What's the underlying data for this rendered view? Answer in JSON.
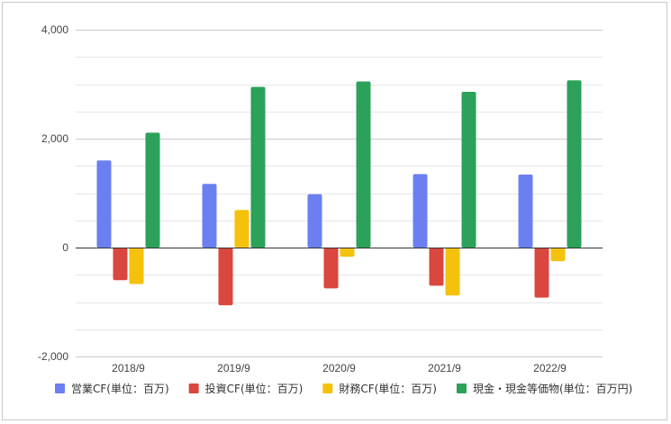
{
  "chart_data": {
    "type": "bar",
    "categories": [
      "2018/9",
      "2019/9",
      "2020/9",
      "2021/9",
      "2022/9"
    ],
    "series": [
      {
        "name": "営業CF(単位：百万)",
        "color": "#6b7ff0",
        "values": [
          1600,
          1170,
          980,
          1350,
          1340
        ]
      },
      {
        "name": "投資CF(単位：百万)",
        "color": "#d9473f",
        "values": [
          -600,
          -1060,
          -750,
          -700,
          -920
        ]
      },
      {
        "name": "財務CF(単位：百万)",
        "color": "#f4c20d",
        "values": [
          -670,
          690,
          -170,
          -880,
          -250
        ]
      },
      {
        "name": "現金・現金等価物(単位：百万円)",
        "color": "#2ba15a",
        "values": [
          2110,
          2950,
          3050,
          2860,
          3070
        ]
      }
    ],
    "y_ticks": [
      "4,000",
      "2,000",
      "0",
      "-2,000"
    ],
    "ylim": [
      -2000,
      4000
    ],
    "grid": true,
    "minor_grid_step": 500,
    "legend_position": "bottom",
    "title": "",
    "xlabel": "",
    "ylabel": ""
  }
}
